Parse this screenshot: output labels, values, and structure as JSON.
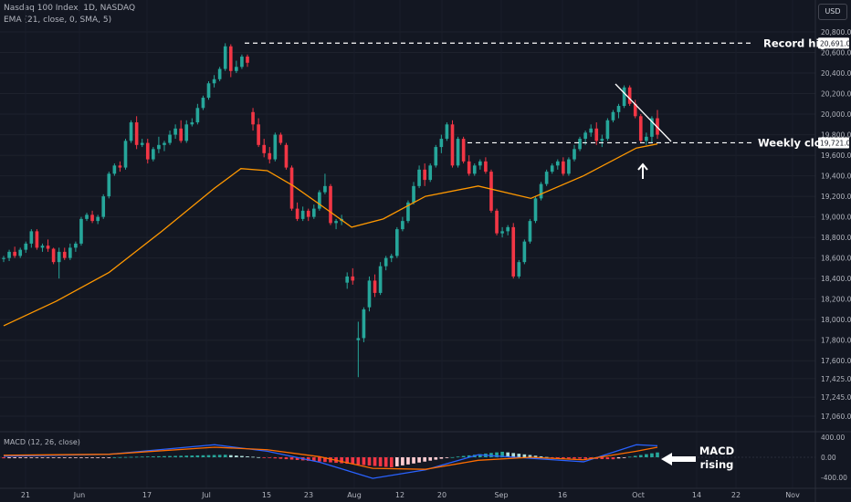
{
  "header": {
    "symbol_line": "Nasdaq 100 Index, 1D, NASDAQ",
    "indicator_line": "EMA (21, close, 0, SMA, 5)",
    "currency": "USD"
  },
  "macd": {
    "label": "MACD (12, 26, close)",
    "ticks": [
      "400.00",
      "0.00",
      "-400.00"
    ],
    "annotation_line1": "MACD",
    "annotation_line2": "rising"
  },
  "annotations": {
    "record_high": "Record high",
    "record_high_value": "20,691.00",
    "weekly_close": "Weekly close",
    "weekly_close_value": "19,721.00"
  },
  "colors": {
    "up": "#26a69a",
    "down": "#f23645",
    "ema": "#ff9800",
    "macd_line": "#2962ff",
    "signal_line": "#ff6d00",
    "background": "#131722"
  },
  "chart_data": {
    "type": "candlestick",
    "price_ticks": [
      20800,
      20600,
      20400,
      20200,
      20000,
      19800,
      19600,
      19400,
      19200,
      19000,
      18800,
      18600,
      18400,
      18200,
      18000,
      17800,
      17600,
      17425,
      17245,
      17060
    ],
    "price_tick_labels": [
      "20,800.00",
      "20,600.00",
      "20,400.00",
      "20,200.00",
      "20,000.00",
      "19,800.00",
      "19,600.00",
      "19,400.00",
      "19,200.00",
      "19,000.00",
      "18,800.00",
      "18,600.00",
      "18,400.00",
      "18,200.00",
      "18,000.00",
      "17,800.00",
      "17,600.00",
      "17,425.00",
      "17,245.00",
      "17,060.00"
    ],
    "x_labels": [
      "21",
      "Jun",
      "17",
      "Jul",
      "15",
      "23",
      "Aug",
      "12",
      "20",
      "Sep",
      "16",
      "Oct",
      "14",
      "22",
      "Nov"
    ],
    "record_high": 20691,
    "weekly_close": 19721,
    "candles": [
      [
        18590,
        18620,
        18560,
        18600
      ],
      [
        18600,
        18680,
        18570,
        18660
      ],
      [
        18660,
        18710,
        18600,
        18620
      ],
      [
        18620,
        18700,
        18600,
        18680
      ],
      [
        18680,
        18760,
        18650,
        18740
      ],
      [
        18740,
        18880,
        18700,
        18860
      ],
      [
        18860,
        18880,
        18680,
        18700
      ],
      [
        18700,
        18740,
        18660,
        18720
      ],
      [
        18720,
        18780,
        18660,
        18690
      ],
      [
        18690,
        18700,
        18540,
        18560
      ],
      [
        18560,
        18700,
        18400,
        18660
      ],
      [
        18660,
        18700,
        18580,
        18600
      ],
      [
        18600,
        18740,
        18580,
        18700
      ],
      [
        18700,
        18760,
        18660,
        18740
      ],
      [
        18740,
        19000,
        18720,
        18980
      ],
      [
        18980,
        19040,
        18960,
        19020
      ],
      [
        19020,
        19060,
        18940,
        18960
      ],
      [
        18960,
        19020,
        18930,
        19000
      ],
      [
        19000,
        19220,
        18980,
        19200
      ],
      [
        19200,
        19440,
        19180,
        19420
      ],
      [
        19420,
        19520,
        19400,
        19500
      ],
      [
        19500,
        19540,
        19440,
        19480
      ],
      [
        19480,
        19760,
        19460,
        19740
      ],
      [
        19740,
        19940,
        19720,
        19920
      ],
      [
        19920,
        19980,
        19660,
        19700
      ],
      [
        19700,
        19760,
        19680,
        19720
      ],
      [
        19720,
        19760,
        19520,
        19560
      ],
      [
        19560,
        19680,
        19540,
        19660
      ],
      [
        19660,
        19780,
        19620,
        19700
      ],
      [
        19700,
        19740,
        19640,
        19720
      ],
      [
        19720,
        19840,
        19700,
        19800
      ],
      [
        19800,
        19900,
        19760,
        19860
      ],
      [
        19860,
        19940,
        19720,
        19740
      ],
      [
        19740,
        19940,
        19720,
        19900
      ],
      [
        19900,
        19960,
        19880,
        19920
      ],
      [
        19920,
        20100,
        19900,
        20060
      ],
      [
        20060,
        20180,
        20040,
        20160
      ],
      [
        20160,
        20320,
        20140,
        20300
      ],
      [
        20300,
        20380,
        20260,
        20340
      ],
      [
        20340,
        20460,
        20320,
        20440
      ],
      [
        20440,
        20690,
        20420,
        20660
      ],
      [
        20660,
        20680,
        20360,
        20420
      ],
      [
        20420,
        20520,
        20400,
        20460
      ],
      [
        20460,
        20580,
        20440,
        20560
      ],
      [
        20560,
        20580,
        20460,
        20500
      ],
      [
        20020,
        20060,
        19840,
        19900
      ],
      [
        19900,
        19960,
        19680,
        19700
      ],
      [
        19700,
        19760,
        19580,
        19620
      ],
      [
        19620,
        19680,
        19520,
        19560
      ],
      [
        19560,
        19820,
        19540,
        19800
      ],
      [
        19800,
        19820,
        19700,
        19720
      ],
      [
        19700,
        19720,
        19460,
        19480
      ],
      [
        19480,
        19500,
        19060,
        19080
      ],
      [
        19080,
        19140,
        18960,
        18980
      ],
      [
        18980,
        19100,
        18960,
        19060
      ],
      [
        19060,
        19080,
        18960,
        19000
      ],
      [
        19000,
        19120,
        18980,
        19080
      ],
      [
        19080,
        19260,
        19060,
        19240
      ],
      [
        19240,
        19420,
        19220,
        19300
      ],
      [
        19300,
        19320,
        18920,
        18940
      ],
      [
        18940,
        18980,
        18880,
        18960
      ],
      [
        18960,
        19020,
        18920,
        18980
      ],
      [
        18360,
        18460,
        18300,
        18420
      ],
      [
        18420,
        18500,
        18340,
        18380
      ],
      [
        17800,
        17980,
        17440,
        17820
      ],
      [
        17820,
        18120,
        17780,
        18100
      ],
      [
        18120,
        18420,
        18080,
        18380
      ],
      [
        18380,
        18440,
        18220,
        18260
      ],
      [
        18260,
        18560,
        18240,
        18520
      ],
      [
        18520,
        18620,
        18480,
        18600
      ],
      [
        18600,
        18640,
        18560,
        18620
      ],
      [
        18620,
        18900,
        18600,
        18880
      ],
      [
        18880,
        19000,
        18860,
        18960
      ],
      [
        18960,
        19160,
        18940,
        19140
      ],
      [
        19140,
        19340,
        19120,
        19300
      ],
      [
        19300,
        19500,
        19280,
        19460
      ],
      [
        19460,
        19520,
        19300,
        19360
      ],
      [
        19360,
        19520,
        19340,
        19500
      ],
      [
        19500,
        19700,
        19480,
        19680
      ],
      [
        19680,
        19800,
        19620,
        19760
      ],
      [
        19760,
        19920,
        19740,
        19900
      ],
      [
        19900,
        19940,
        19480,
        19500
      ],
      [
        19500,
        19780,
        19480,
        19760
      ],
      [
        19760,
        19780,
        19520,
        19540
      ],
      [
        19540,
        19600,
        19400,
        19420
      ],
      [
        19420,
        19520,
        19400,
        19500
      ],
      [
        19500,
        19560,
        19460,
        19540
      ],
      [
        19540,
        19580,
        19420,
        19440
      ],
      [
        19440,
        19460,
        19040,
        19060
      ],
      [
        19060,
        19080,
        18820,
        18840
      ],
      [
        18840,
        18900,
        18800,
        18860
      ],
      [
        18860,
        18920,
        18820,
        18900
      ],
      [
        18900,
        18940,
        18400,
        18420
      ],
      [
        18420,
        18580,
        18400,
        18560
      ],
      [
        18560,
        18780,
        18540,
        18760
      ],
      [
        18760,
        18980,
        18740,
        18960
      ],
      [
        18960,
        19200,
        18940,
        19180
      ],
      [
        19180,
        19340,
        19160,
        19320
      ],
      [
        19320,
        19460,
        19300,
        19440
      ],
      [
        19440,
        19520,
        19420,
        19500
      ],
      [
        19500,
        19560,
        19460,
        19540
      ],
      [
        19540,
        19580,
        19400,
        19420
      ],
      [
        19420,
        19580,
        19400,
        19560
      ],
      [
        19560,
        19700,
        19540,
        19660
      ],
      [
        19660,
        19780,
        19640,
        19760
      ],
      [
        19760,
        19840,
        19700,
        19820
      ],
      [
        19820,
        19900,
        19780,
        19860
      ],
      [
        19860,
        19920,
        19700,
        19740
      ],
      [
        19740,
        19800,
        19680,
        19760
      ],
      [
        19760,
        19960,
        19740,
        19940
      ],
      [
        19940,
        20040,
        19920,
        20020
      ],
      [
        20020,
        20100,
        19960,
        20080
      ],
      [
        20080,
        20280,
        20060,
        20260
      ],
      [
        20260,
        20280,
        20080,
        20100
      ],
      [
        20100,
        20140,
        19960,
        19980
      ],
      [
        19980,
        20000,
        19720,
        19740
      ],
      [
        19740,
        19820,
        19700,
        19780
      ],
      [
        19780,
        19980,
        19720,
        19960
      ],
      [
        19960,
        20040,
        19760,
        19800
      ]
    ],
    "ema": [
      [
        0,
        17940
      ],
      [
        10,
        18180
      ],
      [
        20,
        18460
      ],
      [
        30,
        18860
      ],
      [
        40,
        19280
      ],
      [
        45,
        19470
      ],
      [
        50,
        19450
      ],
      [
        55,
        19300
      ],
      [
        60,
        19120
      ],
      [
        66,
        18900
      ],
      [
        72,
        18980
      ],
      [
        80,
        19200
      ],
      [
        90,
        19300
      ],
      [
        100,
        19180
      ],
      [
        110,
        19400
      ],
      [
        120,
        19670
      ],
      [
        124,
        19710
      ]
    ],
    "macd_line": [
      [
        0,
        20
      ],
      [
        20,
        60
      ],
      [
        40,
        250
      ],
      [
        50,
        120
      ],
      [
        60,
        -100
      ],
      [
        70,
        -420
      ],
      [
        80,
        -250
      ],
      [
        90,
        50
      ],
      [
        100,
        -20
      ],
      [
        110,
        -90
      ],
      [
        120,
        250
      ],
      [
        124,
        230
      ]
    ],
    "signal_line": [
      [
        0,
        40
      ],
      [
        20,
        60
      ],
      [
        40,
        200
      ],
      [
        50,
        150
      ],
      [
        60,
        10
      ],
      [
        70,
        -220
      ],
      [
        80,
        -240
      ],
      [
        90,
        -60
      ],
      [
        100,
        0
      ],
      [
        110,
        -50
      ],
      [
        120,
        120
      ],
      [
        124,
        200
      ]
    ]
  }
}
